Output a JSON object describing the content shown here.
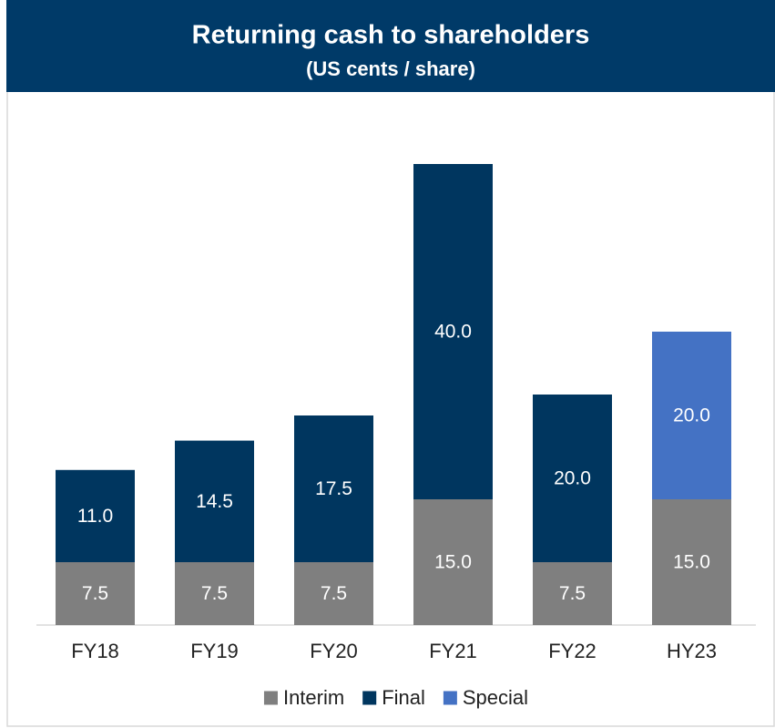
{
  "chart_data": {
    "type": "stacked-bar",
    "title": "Returning cash to shareholders",
    "subtitle": "(US cents / share)",
    "categories": [
      "FY18",
      "FY19",
      "FY20",
      "FY21",
      "FY22",
      "HY23"
    ],
    "series": [
      {
        "name": "Interim",
        "color": "#7f7f7f",
        "values": [
          7.5,
          7.5,
          7.5,
          15,
          7.5,
          15
        ],
        "value_labels": [
          "7.5",
          "7.5",
          "7.5",
          "15.0",
          "7.5",
          "15.0"
        ]
      },
      {
        "name": "Final",
        "color": "#00365f",
        "values": [
          11,
          14.5,
          17.5,
          40,
          20,
          null
        ],
        "value_labels": [
          "11.0",
          "14.5",
          "17.5",
          "40.0",
          "20.0",
          null
        ]
      },
      {
        "name": "Special",
        "color": "#4472c4",
        "values": [
          null,
          null,
          null,
          null,
          null,
          20
        ],
        "value_labels": [
          null,
          null,
          null,
          null,
          null,
          "20.0"
        ]
      }
    ],
    "ylim": [
      0,
      60
    ],
    "legend": "bottom"
  }
}
